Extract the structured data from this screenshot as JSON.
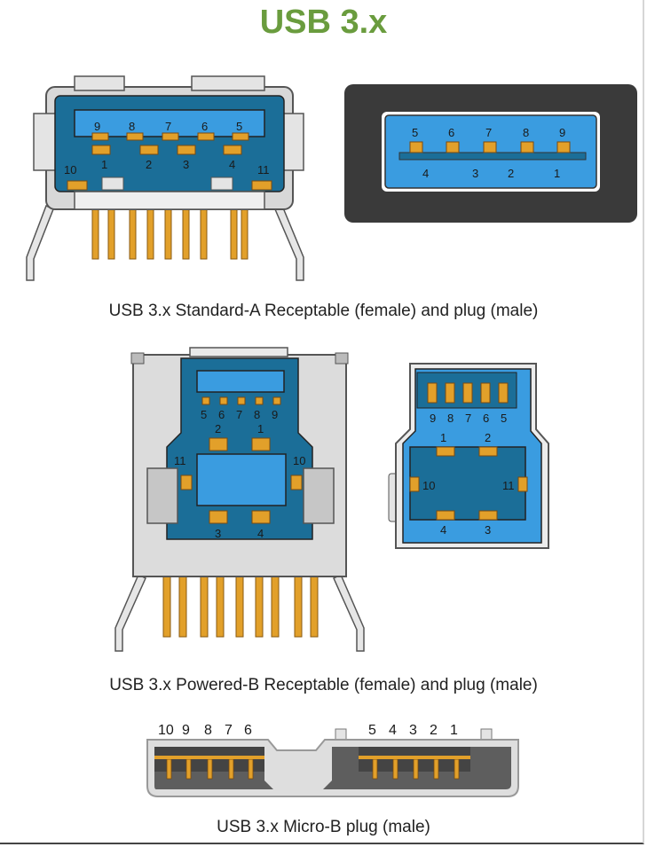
{
  "title": "USB 3.x",
  "captions": {
    "standard_a": "USB 3.x Standard-A Receptable (female) and plug (male)",
    "powered_b": "USB 3.x Powered-B Receptable (female) and plug (male)",
    "micro_b": "USB 3.x Micro-B plug (male)"
  },
  "colors": {
    "title": "#6a9c3e",
    "dark_blue": "#1b6e98",
    "light_blue": "#3a9ce0",
    "gold": "#e2a02a",
    "grey": "#c8c8c8",
    "charcoal": "#3a3a3a"
  },
  "std_a_receptacle": {
    "top_pins": [
      "9",
      "8",
      "7",
      "6",
      "5"
    ],
    "bottom_pins": [
      "1",
      "2",
      "3",
      "4"
    ],
    "side_left": "10",
    "side_right": "11"
  },
  "std_a_plug": {
    "top_pins": [
      "5",
      "6",
      "7",
      "8",
      "9"
    ],
    "bottom_pins": [
      "4",
      "3",
      "2",
      "1"
    ]
  },
  "pb_receptacle": {
    "top_pins": [
      "5",
      "6",
      "7",
      "8",
      "9"
    ],
    "upper_pins": [
      "2",
      "1"
    ],
    "side_left": "11",
    "side_right": "10",
    "bottom_pins": [
      "3",
      "4"
    ]
  },
  "pb_plug": {
    "top_pins": [
      "9",
      "8",
      "7",
      "6",
      "5"
    ],
    "upper_pins": [
      "1",
      "2"
    ],
    "side_left": "10",
    "side_right": "11",
    "bottom_pins": [
      "4",
      "3"
    ]
  },
  "micro_b": {
    "left_pins": [
      "10",
      "9",
      "8",
      "7",
      "6"
    ],
    "right_pins": [
      "5",
      "4",
      "3",
      "2",
      "1"
    ]
  }
}
